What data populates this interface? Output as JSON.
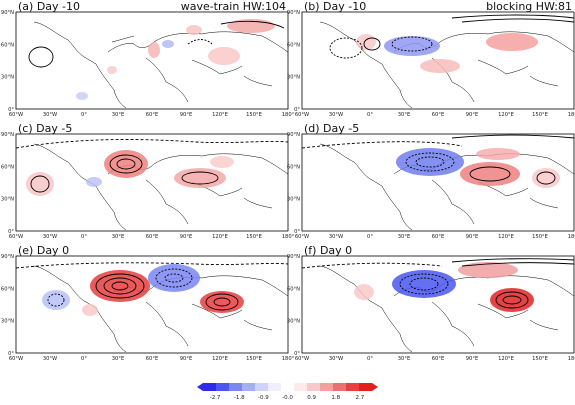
{
  "panels": [
    {
      "id": "a",
      "title": "(a) Day -10",
      "right_label": "wave-train HW:104"
    },
    {
      "id": "b",
      "title": "(b) Day -10",
      "right_label": "blocking HW:81"
    },
    {
      "id": "c",
      "title": "(c) Day -5",
      "right_label": ""
    },
    {
      "id": "d",
      "title": "(d) Day -5",
      "right_label": ""
    },
    {
      "id": "e",
      "title": "(e) Day 0",
      "right_label": ""
    },
    {
      "id": "f",
      "title": "(f) Day 0",
      "right_label": ""
    }
  ],
  "axes": {
    "lon_ticks": [
      "60°W",
      "30°W",
      "0°",
      "30°E",
      "60°E",
      "90°E",
      "120°E",
      "150°E",
      "180°"
    ],
    "lat_ticks": [
      "0°",
      "30°N",
      "60°N",
      "90°N"
    ]
  },
  "colorbar": {
    "ticks": [
      "-2.7",
      "-1.8",
      "-0.9",
      "-0.0",
      "0.9",
      "1.8",
      "2.7"
    ],
    "colors": [
      "#2d2be8",
      "#4a56ee",
      "#7a86f2",
      "#a6aef6",
      "#cfd3fa",
      "#eef0fd",
      "#ffffff",
      "#fdeaea",
      "#fac8c8",
      "#f5a0a0",
      "#ee7070",
      "#e84040",
      "#e2201f"
    ]
  }
}
